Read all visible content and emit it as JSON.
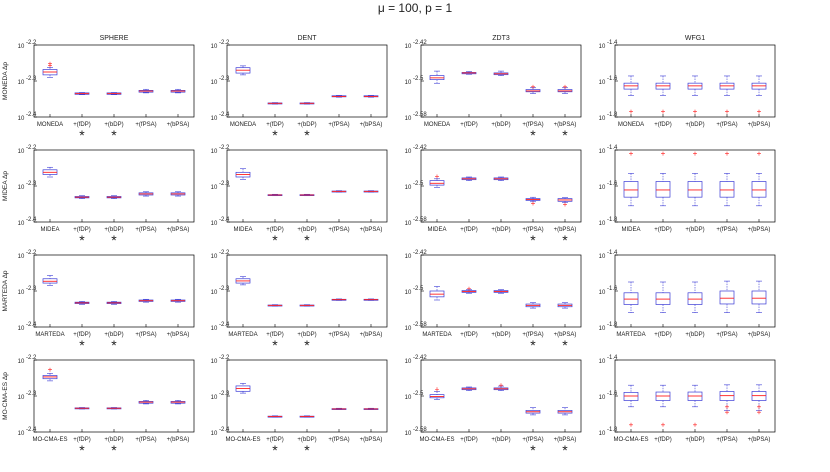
{
  "suptitle": "μ = 100, p = 1",
  "chart_data": {
    "type": "box",
    "problems": [
      "SPHERE",
      "DENT",
      "ZDT3",
      "WFG1"
    ],
    "methods": [
      "MONEDA",
      "MIDEA",
      "MARTEDA",
      "MO-CMA-ES"
    ],
    "ylabel_suffix": "Δp",
    "ytick_labels": {
      "SPHERE": [
        "10",
        "-2.2",
        "10",
        "-2.3",
        "10",
        "-2.4"
      ],
      "DENT": [
        "10",
        "-2.2",
        "10",
        "-2.3",
        "10",
        "-2.4"
      ],
      "ZDT3": [
        "10",
        "-2.42",
        "10",
        "-2.5",
        "10",
        "-2.58"
      ],
      "WFG1": [
        "10",
        "-1.4",
        "10",
        "-1.6",
        "10",
        "-1.8"
      ]
    },
    "grid": false,
    "significance_marker": "*",
    "panels": [
      {
        "row": "MONEDA",
        "col": "SPHERE",
        "categories": [
          "MONEDA",
          "+(fDP)",
          "+(bDP)",
          "+(fPSA)",
          "+(bPSA)"
        ],
        "significant": [
          false,
          true,
          true,
          false,
          false
        ],
        "boxes": [
          [
            -2.29,
            -2.283,
            -2.275,
            -2.268,
            -2.262,
            [
              -2.257,
              -2.252
            ]
          ],
          [
            -2.338,
            -2.337,
            -2.335,
            -2.333,
            -2.332,
            []
          ],
          [
            -2.338,
            -2.337,
            -2.335,
            -2.333,
            -2.332,
            []
          ],
          [
            -2.333,
            -2.331,
            -2.328,
            -2.326,
            -2.323,
            []
          ],
          [
            -2.333,
            -2.331,
            -2.328,
            -2.326,
            -2.323,
            []
          ]
        ]
      },
      {
        "row": "MONEDA",
        "col": "DENT",
        "categories": [
          "MONEDA",
          "+(fDP)",
          "+(bDP)",
          "+(fPSA)",
          "+(bPSA)"
        ],
        "significant": [
          false,
          true,
          true,
          false,
          false
        ],
        "boxes": [
          [
            -2.283,
            -2.278,
            -2.27,
            -2.263,
            -2.258,
            []
          ],
          [
            -2.364,
            -2.363,
            -2.362,
            -2.361,
            -2.36,
            []
          ],
          [
            -2.364,
            -2.363,
            -2.362,
            -2.361,
            -2.36,
            []
          ],
          [
            -2.345,
            -2.344,
            -2.343,
            -2.341,
            -2.34,
            []
          ],
          [
            -2.345,
            -2.344,
            -2.343,
            -2.341,
            -2.34,
            []
          ]
        ]
      },
      {
        "row": "MONEDA",
        "col": "ZDT3",
        "categories": [
          "MONEDA",
          "+(fDP)",
          "+(bDP)",
          "+(fPSA)",
          "+(bPSA)"
        ],
        "significant": [
          false,
          false,
          false,
          true,
          true
        ],
        "boxes": [
          [
            -2.505,
            -2.497,
            -2.493,
            -2.488,
            -2.478,
            []
          ],
          [
            -2.485,
            -2.484,
            -2.482,
            -2.481,
            -2.479,
            []
          ],
          [
            -2.488,
            -2.486,
            -2.484,
            -2.482,
            -2.478,
            []
          ],
          [
            -2.528,
            -2.524,
            -2.522,
            -2.519,
            -2.515,
            [
              -2.513
            ]
          ],
          [
            -2.528,
            -2.524,
            -2.522,
            -2.519,
            -2.515,
            [
              -2.513
            ]
          ]
        ]
      },
      {
        "row": "MONEDA",
        "col": "WFG1",
        "categories": [
          "MONEDA",
          "+(fDP)",
          "+(bDP)",
          "+(fPSA)",
          "+(bPSA)"
        ],
        "significant": [
          false,
          false,
          false,
          false,
          false
        ],
        "boxes": [
          [
            -1.68,
            -1.645,
            -1.627,
            -1.612,
            -1.572,
            [
              -1.77
            ]
          ],
          [
            -1.68,
            -1.645,
            -1.627,
            -1.612,
            -1.572,
            [
              -1.77
            ]
          ],
          [
            -1.68,
            -1.645,
            -1.627,
            -1.612,
            -1.572,
            [
              -1.77
            ]
          ],
          [
            -1.68,
            -1.645,
            -1.627,
            -1.612,
            -1.572,
            [
              -1.77
            ]
          ],
          [
            -1.68,
            -1.645,
            -1.627,
            -1.612,
            -1.572,
            [
              -1.77
            ]
          ]
        ]
      },
      {
        "row": "MIDEA",
        "col": "SPHERE",
        "categories": [
          "MIDEA",
          "+(fDP)",
          "+(bDP)",
          "+(fPSA)",
          "+(bPSA)"
        ],
        "significant": [
          false,
          true,
          true,
          false,
          false
        ],
        "boxes": [
          [
            -2.275,
            -2.268,
            -2.262,
            -2.255,
            -2.248,
            []
          ],
          [
            -2.335,
            -2.333,
            -2.331,
            -2.329,
            -2.327,
            []
          ],
          [
            -2.335,
            -2.333,
            -2.331,
            -2.329,
            -2.327,
            []
          ],
          [
            -2.328,
            -2.325,
            -2.322,
            -2.319,
            -2.316,
            []
          ],
          [
            -2.328,
            -2.325,
            -2.322,
            -2.319,
            -2.316,
            []
          ]
        ]
      },
      {
        "row": "MIDEA",
        "col": "DENT",
        "categories": [
          "MIDEA",
          "+(fDP)",
          "+(bDP)",
          "+(fPSA)",
          "+(bPSA)"
        ],
        "significant": [
          false,
          true,
          true,
          false,
          false
        ],
        "boxes": [
          [
            -2.282,
            -2.275,
            -2.268,
            -2.262,
            -2.252,
            []
          ],
          [
            -2.327,
            -2.326,
            -2.325,
            -2.324,
            -2.323,
            []
          ],
          [
            -2.327,
            -2.326,
            -2.325,
            -2.324,
            -2.323,
            []
          ],
          [
            -2.317,
            -2.316,
            -2.315,
            -2.314,
            -2.313,
            []
          ],
          [
            -2.317,
            -2.316,
            -2.315,
            -2.314,
            -2.313,
            []
          ]
        ]
      },
      {
        "row": "MIDEA",
        "col": "ZDT3",
        "categories": [
          "MIDEA",
          "+(fDP)",
          "+(bDP)",
          "+(fPSA)",
          "+(bPSA)"
        ],
        "significant": [
          false,
          false,
          false,
          true,
          true
        ],
        "boxes": [
          [
            -2.503,
            -2.498,
            -2.494,
            -2.488,
            -2.484,
            [
              -2.479
            ]
          ],
          [
            -2.488,
            -2.486,
            -2.484,
            -2.482,
            -2.48,
            []
          ],
          [
            -2.488,
            -2.486,
            -2.484,
            -2.482,
            -2.48,
            []
          ],
          [
            -2.535,
            -2.532,
            -2.53,
            -2.528,
            -2.525,
            [
              -2.539
            ]
          ],
          [
            -2.537,
            -2.534,
            -2.531,
            -2.528,
            -2.526,
            [
              -2.541
            ]
          ]
        ]
      },
      {
        "row": "MIDEA",
        "col": "WFG1",
        "categories": [
          "MIDEA",
          "+(fDP)",
          "+(bDP)",
          "+(fPSA)",
          "+(bPSA)"
        ],
        "significant": [
          false,
          false,
          false,
          false,
          false
        ],
        "boxes": [
          [
            -1.71,
            -1.662,
            -1.622,
            -1.575,
            -1.53,
            [
              -1.42
            ]
          ],
          [
            -1.71,
            -1.662,
            -1.622,
            -1.575,
            -1.53,
            [
              -1.42
            ]
          ],
          [
            -1.71,
            -1.662,
            -1.622,
            -1.575,
            -1.53,
            [
              -1.42
            ]
          ],
          [
            -1.71,
            -1.662,
            -1.622,
            -1.575,
            -1.53,
            [
              -1.42
            ]
          ],
          [
            -1.71,
            -1.662,
            -1.622,
            -1.575,
            -1.53,
            [
              -1.42
            ]
          ]
        ]
      },
      {
        "row": "MARTEDA",
        "col": "SPHERE",
        "categories": [
          "MARTEDA",
          "+(fDP)",
          "+(bDP)",
          "+(fPSA)",
          "+(bPSA)"
        ],
        "significant": [
          false,
          true,
          true,
          false,
          false
        ],
        "boxes": [
          [
            -2.285,
            -2.278,
            -2.273,
            -2.266,
            -2.257,
            []
          ],
          [
            -2.337,
            -2.335,
            -2.333,
            -2.331,
            -2.329,
            []
          ],
          [
            -2.337,
            -2.335,
            -2.333,
            -2.331,
            -2.329,
            []
          ],
          [
            -2.331,
            -2.329,
            -2.327,
            -2.325,
            -2.323,
            []
          ],
          [
            -2.331,
            -2.329,
            -2.327,
            -2.325,
            -2.323,
            []
          ]
        ]
      },
      {
        "row": "MARTEDA",
        "col": "DENT",
        "categories": [
          "MARTEDA",
          "+(fDP)",
          "+(bDP)",
          "+(fPSA)",
          "+(bPSA)"
        ],
        "significant": [
          false,
          true,
          true,
          false,
          false
        ],
        "boxes": [
          [
            -2.283,
            -2.278,
            -2.272,
            -2.266,
            -2.26,
            []
          ],
          [
            -2.342,
            -2.341,
            -2.34,
            -2.339,
            -2.338,
            []
          ],
          [
            -2.342,
            -2.341,
            -2.34,
            -2.339,
            -2.338,
            []
          ],
          [
            -2.326,
            -2.325,
            -2.324,
            -2.323,
            -2.322,
            []
          ],
          [
            -2.326,
            -2.325,
            -2.324,
            -2.323,
            -2.322,
            []
          ]
        ]
      },
      {
        "row": "MARTEDA",
        "col": "ZDT3",
        "categories": [
          "MARTEDA",
          "+(fDP)",
          "+(bDP)",
          "+(fPSA)",
          "+(bPSA)"
        ],
        "significant": [
          false,
          false,
          false,
          true,
          true
        ],
        "boxes": [
          [
            -2.52,
            -2.513,
            -2.507,
            -2.5,
            -2.49,
            []
          ],
          [
            -2.505,
            -2.503,
            -2.501,
            -2.499,
            -2.497,
            [
              -2.495
            ]
          ],
          [
            -2.505,
            -2.503,
            -2.501,
            -2.499,
            -2.497,
            []
          ],
          [
            -2.538,
            -2.535,
            -2.532,
            -2.529,
            -2.526,
            []
          ],
          [
            -2.538,
            -2.535,
            -2.532,
            -2.529,
            -2.526,
            []
          ]
        ]
      },
      {
        "row": "MARTEDA",
        "col": "WFG1",
        "categories": [
          "MARTEDA",
          "+(fDP)",
          "+(bDP)",
          "+(fPSA)",
          "+(bPSA)"
        ],
        "significant": [
          false,
          false,
          false,
          false,
          false
        ],
        "boxes": [
          [
            -1.72,
            -1.675,
            -1.645,
            -1.61,
            -1.55,
            []
          ],
          [
            -1.72,
            -1.675,
            -1.645,
            -1.61,
            -1.55,
            []
          ],
          [
            -1.72,
            -1.675,
            -1.645,
            -1.61,
            -1.55,
            []
          ],
          [
            -1.72,
            -1.672,
            -1.64,
            -1.6,
            -1.545,
            []
          ],
          [
            -1.72,
            -1.672,
            -1.64,
            -1.6,
            -1.545,
            []
          ]
        ]
      },
      {
        "row": "MO-CMA-ES",
        "col": "SPHERE",
        "categories": [
          "MO-CMA-ES",
          "+(fDP)",
          "+(bDP)",
          "+(fPSA)",
          "+(bPSA)"
        ],
        "significant": [
          false,
          true,
          true,
          false,
          false
        ],
        "boxes": [
          [
            -2.258,
            -2.252,
            -2.247,
            -2.243,
            -2.237,
            [
              -2.227
            ]
          ],
          [
            -2.336,
            -2.335,
            -2.334,
            -2.333,
            -2.332,
            []
          ],
          [
            -2.336,
            -2.335,
            -2.334,
            -2.333,
            -2.332,
            []
          ],
          [
            -2.322,
            -2.32,
            -2.317,
            -2.315,
            -2.312,
            []
          ],
          [
            -2.322,
            -2.32,
            -2.317,
            -2.315,
            -2.312,
            []
          ]
        ]
      },
      {
        "row": "MO-CMA-ES",
        "col": "DENT",
        "categories": [
          "MO-CMA-ES",
          "+(fDP)",
          "+(bDP)",
          "+(fPSA)",
          "+(bPSA)"
        ],
        "significant": [
          false,
          true,
          true,
          false,
          false
        ],
        "boxes": [
          [
            -2.292,
            -2.287,
            -2.279,
            -2.272,
            -2.265,
            []
          ],
          [
            -2.359,
            -2.358,
            -2.357,
            -2.356,
            -2.355,
            []
          ],
          [
            -2.359,
            -2.358,
            -2.357,
            -2.356,
            -2.355,
            []
          ],
          [
            -2.338,
            -2.337,
            -2.336,
            -2.335,
            -2.334,
            []
          ],
          [
            -2.338,
            -2.337,
            -2.336,
            -2.335,
            -2.334,
            []
          ]
        ]
      },
      {
        "row": "MO-CMA-ES",
        "col": "ZDT3",
        "categories": [
          "MO-CMA-ES",
          "+(fDP)",
          "+(bDP)",
          "+(fPSA)",
          "+(bPSA)"
        ],
        "significant": [
          false,
          false,
          false,
          true,
          true
        ],
        "boxes": [
          [
            -2.508,
            -2.504,
            -2.501,
            -2.497,
            -2.49,
            [
              -2.485
            ]
          ],
          [
            -2.488,
            -2.486,
            -2.484,
            -2.482,
            -2.48,
            []
          ],
          [
            -2.488,
            -2.486,
            -2.484,
            -2.482,
            -2.478,
            [
              -2.476
            ]
          ],
          [
            -2.542,
            -2.538,
            -2.535,
            -2.532,
            -2.526,
            []
          ],
          [
            -2.542,
            -2.538,
            -2.535,
            -2.532,
            -2.526,
            []
          ]
        ]
      },
      {
        "row": "MO-CMA-ES",
        "col": "WFG1",
        "categories": [
          "MO-CMA-ES",
          "+(fDP)",
          "+(bDP)",
          "+(fPSA)",
          "+(bPSA)"
        ],
        "significant": [
          false,
          false,
          false,
          false,
          false
        ],
        "boxes": [
          [
            -1.66,
            -1.625,
            -1.6,
            -1.58,
            -1.54,
            [
              -1.76
            ]
          ],
          [
            -1.66,
            -1.625,
            -1.6,
            -1.578,
            -1.54,
            [
              -1.76
            ]
          ],
          [
            -1.66,
            -1.625,
            -1.6,
            -1.578,
            -1.54,
            [
              -1.76
            ]
          ],
          [
            -1.68,
            -1.625,
            -1.598,
            -1.575,
            -1.538,
            [
              -1.69,
              -1.66
            ]
          ],
          [
            -1.68,
            -1.625,
            -1.598,
            -1.575,
            -1.538,
            [
              -1.69,
              -1.66
            ]
          ]
        ]
      }
    ]
  }
}
